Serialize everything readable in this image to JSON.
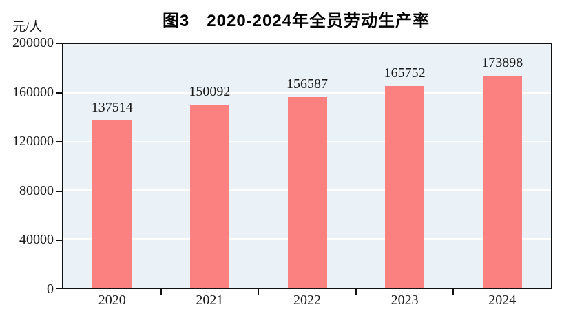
{
  "chart_data": {
    "type": "bar",
    "title": "图3　2020-2024年全员劳动生产率",
    "ylabel": "元/人",
    "xlabel": "",
    "categories": [
      "2020",
      "2021",
      "2022",
      "2023",
      "2024"
    ],
    "values": [
      137514,
      150092,
      156587,
      165752,
      173898
    ],
    "value_labels": [
      "137514",
      "150092",
      "156587",
      "165752",
      "173898"
    ],
    "ylim": [
      0,
      200000
    ],
    "yticks": [
      0,
      40000,
      80000,
      120000,
      160000,
      200000
    ],
    "ytick_labels": [
      "0",
      "40000",
      "80000",
      "120000",
      "160000",
      "200000"
    ],
    "grid": "horizontal",
    "legend": "none",
    "colors": {
      "bar_fill": "#fb8080",
      "plot_background": "#eaf2f7",
      "gridline": "#ffffff",
      "axis_border": "#111111",
      "text": "#1a1a1a",
      "title_text": "#000000",
      "page_background": "#ffffff"
    }
  }
}
